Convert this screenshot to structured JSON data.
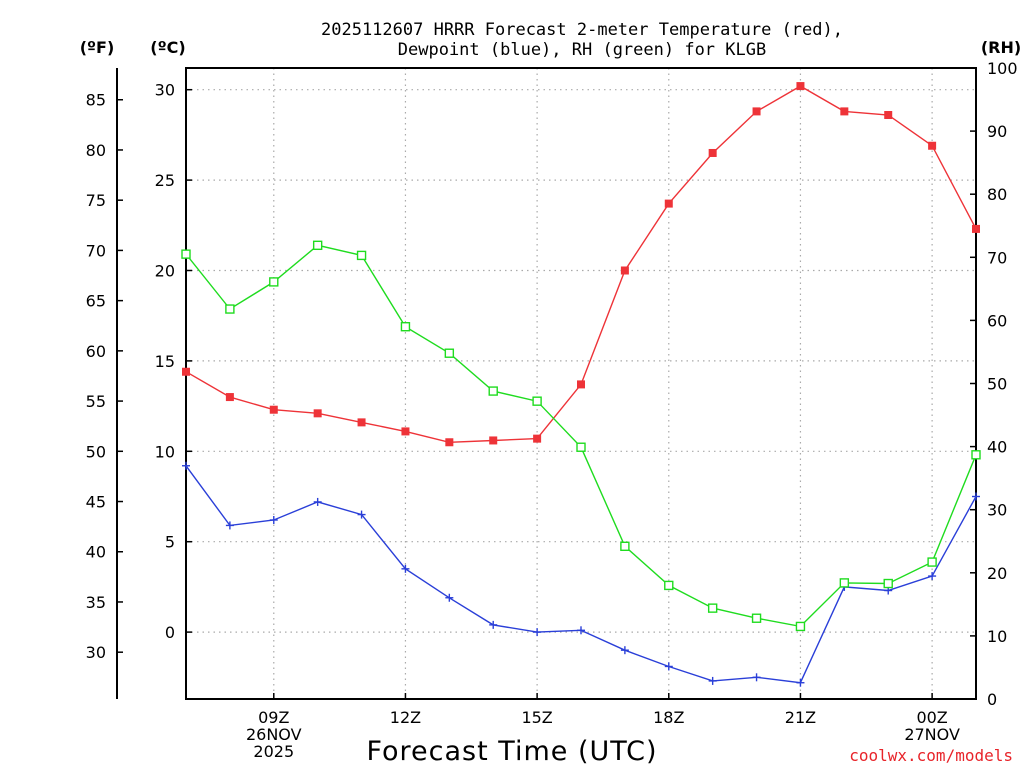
{
  "colors": {
    "temperature": "#ee3338",
    "dewpoint": "#2a3fd8",
    "rh": "#1fdc1f",
    "credit": "#e8242a"
  },
  "chart_data": {
    "type": "line",
    "title": [
      "2025112607 HRRR Forecast 2-meter Temperature (red),",
      "Dewpoint (blue), RH (green) for KLGB"
    ],
    "xlabel": "Forecast Time (UTC)",
    "credit": "coolwx.com/models",
    "x_hours": [
      7,
      8,
      9,
      10,
      11,
      12,
      13,
      14,
      15,
      16,
      17,
      18,
      19,
      20,
      21,
      22,
      23,
      24,
      25
    ],
    "xlim": [
      7,
      25
    ],
    "x_ticks": [
      {
        "hour": 9,
        "lines": [
          "09Z",
          "26NOV",
          "2025"
        ]
      },
      {
        "hour": 12,
        "lines": [
          "12Z"
        ]
      },
      {
        "hour": 15,
        "lines": [
          "15Z"
        ]
      },
      {
        "hour": 18,
        "lines": [
          "18Z"
        ]
      },
      {
        "hour": 21,
        "lines": [
          "21Z"
        ]
      },
      {
        "hour": 24,
        "lines": [
          "00Z",
          "27NOV"
        ]
      }
    ],
    "left_axis_c": {
      "unit": "(ºC)",
      "ticks": [
        0,
        5,
        10,
        15,
        20,
        25,
        30
      ],
      "ylim": [
        -3.7,
        31.2
      ]
    },
    "left_axis_f": {
      "unit": "(ºF)",
      "ticks": [
        30,
        35,
        40,
        45,
        50,
        55,
        60,
        65,
        70,
        75,
        80,
        85
      ]
    },
    "right_axis_rh": {
      "unit": "(RH)",
      "ticks": [
        0,
        10,
        20,
        30,
        40,
        50,
        60,
        70,
        80,
        90,
        100
      ],
      "ylim": [
        0,
        100
      ]
    },
    "grid": true,
    "series": [
      {
        "name": "Temperature",
        "unit": "C",
        "color": "#ee3338",
        "marker": "filled-square",
        "values": [
          14.4,
          13.0,
          12.3,
          12.1,
          11.6,
          11.1,
          10.5,
          10.6,
          10.7,
          13.7,
          20.0,
          23.7,
          26.5,
          28.8,
          30.2,
          28.8,
          28.6,
          26.9,
          22.3
        ]
      },
      {
        "name": "Dewpoint",
        "unit": "C",
        "color": "#2a3fd8",
        "marker": "plus",
        "values": [
          9.2,
          5.9,
          6.2,
          7.2,
          6.5,
          3.5,
          1.9,
          0.4,
          0.0,
          0.1,
          -1.0,
          -1.9,
          -2.7,
          -2.5,
          -2.8,
          2.5,
          2.3,
          3.1,
          7.5
        ]
      },
      {
        "name": "RH",
        "unit": "%",
        "color": "#1fdc1f",
        "marker": "open-square",
        "values": [
          70.5,
          61.8,
          66.1,
          71.9,
          70.3,
          59.0,
          54.8,
          48.8,
          47.2,
          39.9,
          24.2,
          18.0,
          14.4,
          12.8,
          11.5,
          18.4,
          18.3,
          21.7,
          38.7
        ]
      }
    ]
  }
}
